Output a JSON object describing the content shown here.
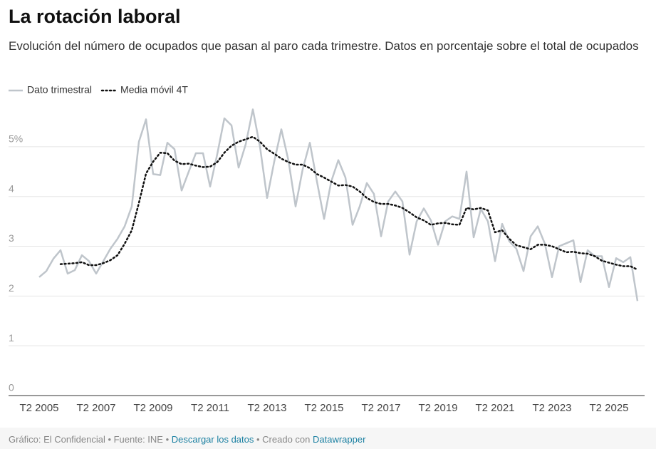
{
  "chart_data": {
    "type": "line",
    "title": "La rotación laboral",
    "subtitle": "Evolución del número de ocupados que pasan al paro cada trimestre. Datos en porcentaje sobre el total de ocupados",
    "categories": [
      "T2 2005",
      null,
      null,
      null,
      null,
      null,
      null,
      null,
      "T2 2007",
      null,
      null,
      null,
      null,
      null,
      null,
      null,
      "T2 2009",
      null,
      null,
      null,
      null,
      null,
      null,
      null,
      "T2 2011",
      null,
      null,
      null,
      null,
      null,
      null,
      null,
      "T2 2013",
      null,
      null,
      null,
      null,
      null,
      null,
      null,
      "T2 2015",
      null,
      null,
      null,
      null,
      null,
      null,
      null,
      "T2 2017",
      null,
      null,
      null,
      null,
      null,
      null,
      null,
      "T2 2019",
      null,
      null,
      null,
      null,
      null,
      null,
      null,
      "T2 2021",
      null,
      null,
      null,
      null,
      null,
      null,
      null,
      "T2 2023",
      null,
      null,
      null,
      null,
      null,
      null,
      null,
      "T2 2025",
      null,
      null,
      null,
      null
    ],
    "series": [
      {
        "name": "Dato trimestral",
        "color": "#bfc5cb",
        "line_style": "solid",
        "values": [
          2.38,
          2.5,
          2.75,
          2.92,
          2.45,
          2.52,
          2.82,
          2.7,
          2.45,
          2.7,
          2.95,
          3.15,
          3.4,
          3.8,
          5.1,
          5.55,
          4.45,
          4.43,
          5.08,
          4.95,
          4.12,
          4.5,
          4.87,
          4.87,
          4.2,
          4.85,
          5.57,
          5.43,
          4.58,
          5.05,
          5.75,
          5.0,
          3.97,
          4.7,
          5.35,
          4.72,
          3.8,
          4.55,
          5.08,
          4.3,
          3.55,
          4.3,
          4.73,
          4.38,
          3.43,
          3.8,
          4.27,
          4.05,
          3.2,
          3.9,
          4.1,
          3.9,
          2.83,
          3.5,
          3.76,
          3.52,
          3.03,
          3.5,
          3.6,
          3.55,
          4.5,
          3.18,
          3.75,
          3.5,
          2.7,
          3.45,
          3.1,
          2.95,
          2.5,
          3.2,
          3.4,
          3.05,
          2.38,
          3.0,
          3.06,
          3.12,
          2.28,
          2.92,
          2.8,
          2.8,
          2.18,
          2.76,
          2.68,
          2.78,
          1.9
        ]
      },
      {
        "name": "Media móvil 4T",
        "color": "#111111",
        "line_style": "dotted",
        "values": [
          null,
          null,
          null,
          2.64,
          2.65,
          2.66,
          2.68,
          2.62,
          2.62,
          2.66,
          2.72,
          2.82,
          3.05,
          3.32,
          3.87,
          4.46,
          4.7,
          4.88,
          4.87,
          4.72,
          4.65,
          4.66,
          4.62,
          4.59,
          4.6,
          4.69,
          4.88,
          5.02,
          5.1,
          5.15,
          5.2,
          5.1,
          4.95,
          4.86,
          4.76,
          4.69,
          4.64,
          4.64,
          4.57,
          4.45,
          4.38,
          4.3,
          4.22,
          4.23,
          4.2,
          4.1,
          3.97,
          3.89,
          3.85,
          3.85,
          3.82,
          3.77,
          3.68,
          3.58,
          3.52,
          3.43,
          3.46,
          3.47,
          3.44,
          3.43,
          3.77,
          3.74,
          3.77,
          3.72,
          3.28,
          3.32,
          3.15,
          3.02,
          2.98,
          2.94,
          3.03,
          3.03,
          3.0,
          2.94,
          2.88,
          2.89,
          2.86,
          2.85,
          2.8,
          2.71,
          2.67,
          2.63,
          2.6,
          2.6,
          2.53
        ]
      }
    ],
    "ylim": [
      0,
      5.8
    ],
    "yticks": [
      0,
      1,
      2,
      3,
      4,
      {
        "value": 5,
        "label": "5%"
      }
    ],
    "grid": true,
    "legend": "top-left",
    "footer": {
      "source": "Gráfico: El Confidencial • Fuente: INE • ",
      "download": "Descargar los datos",
      "created": " • Creado con ",
      "tool": "Datawrapper"
    }
  }
}
